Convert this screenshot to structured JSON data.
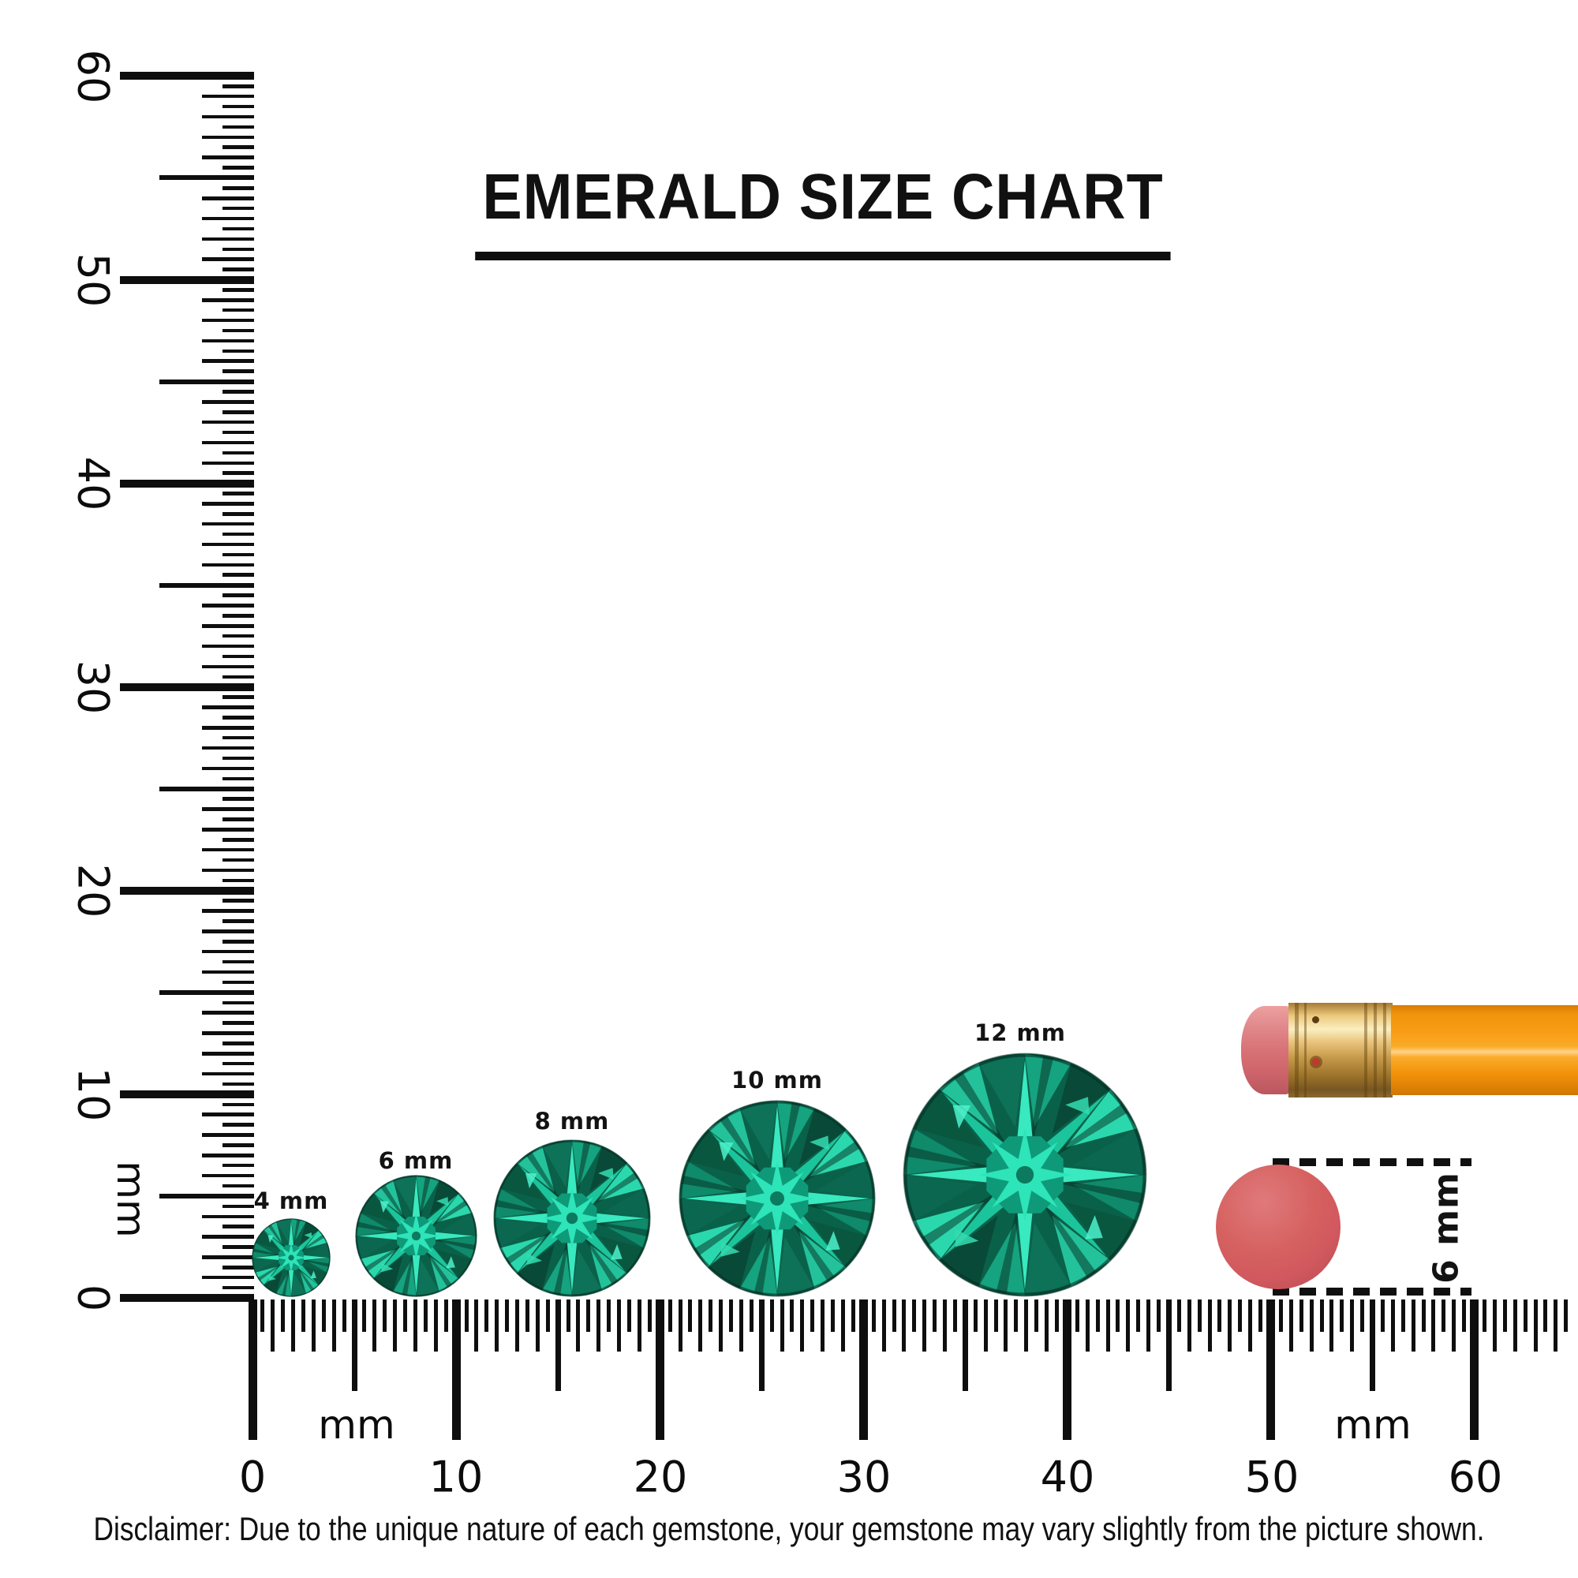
{
  "title": {
    "text": "EMERALD SIZE CHART"
  },
  "left_ruler": {
    "unit": "mm",
    "labels": [
      "0",
      "10",
      "20",
      "30",
      "40",
      "50",
      "60"
    ]
  },
  "bottom_ruler": {
    "unit_left": "mm",
    "unit_right": "mm",
    "labels": [
      "0",
      "10",
      "20",
      "30",
      "40",
      "50",
      "60"
    ]
  },
  "gems": [
    {
      "label": "4 mm",
      "size_mm": 4
    },
    {
      "label": "6 mm",
      "size_mm": 6
    },
    {
      "label": "8 mm",
      "size_mm": 8
    },
    {
      "label": "10 mm",
      "size_mm": 10
    },
    {
      "label": "12 mm",
      "size_mm": 12
    }
  ],
  "eraser_measurement": {
    "label": "6 mm"
  },
  "disclaimer": "Disclaimer: Due to the unique nature of each gemstone, your gemstone may vary slightly from the picture shown.",
  "colors": {
    "emerald_bright": "#35e5b5",
    "emerald_mid": "#14967a",
    "emerald_dark": "#0a5740",
    "ruler_ink": "#0e0e0e",
    "eraser_pink": "#d2595f",
    "pencil_orange": "#f89d15",
    "ferrule_gold": "#d9ab55"
  }
}
